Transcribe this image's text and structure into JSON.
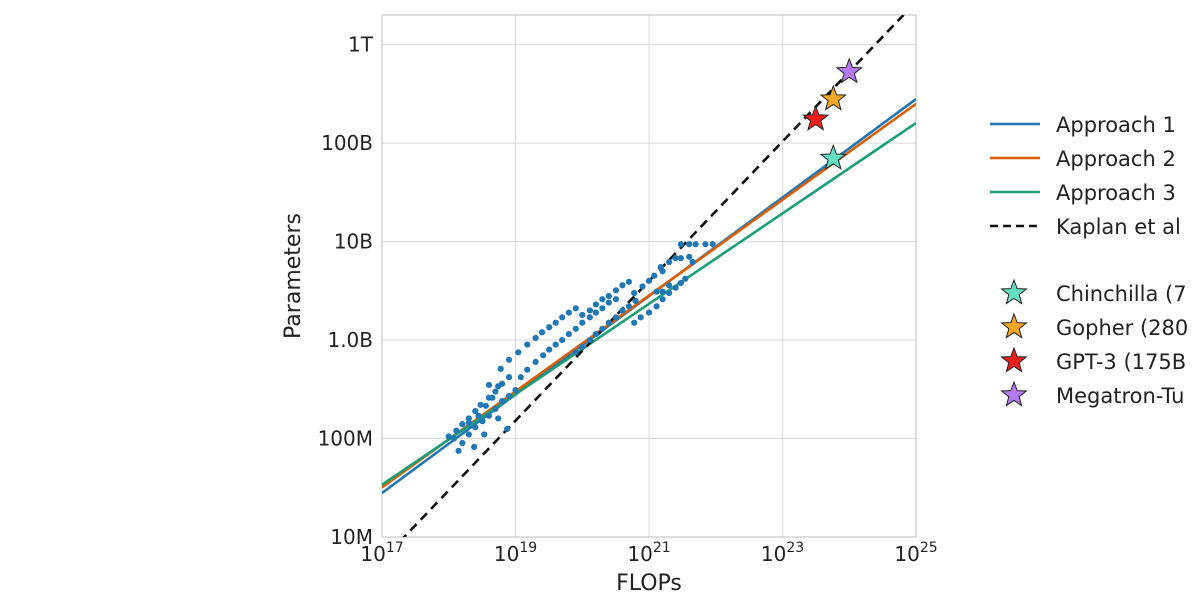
{
  "chart_data": {
    "type": "scatter",
    "xlabel": "FLOPs",
    "ylabel": "Parameters",
    "x_scale": "log",
    "y_scale": "log",
    "xlim": [
      1e+17,
      1e+25
    ],
    "ylim": [
      10000000.0,
      2000000000000.0
    ],
    "grid": true,
    "legend_position": "right (outside, clipped)",
    "x_ticks": [
      {
        "value": 1e+17,
        "base": "10",
        "exp": "17"
      },
      {
        "value": 1e+19,
        "base": "10",
        "exp": "19"
      },
      {
        "value": 1e+21,
        "base": "10",
        "exp": "21"
      },
      {
        "value": 1e+23,
        "base": "10",
        "exp": "23"
      },
      {
        "value": 1e+25,
        "base": "10",
        "exp": "25"
      }
    ],
    "y_ticks": [
      {
        "value": 10000000.0,
        "label": "10M"
      },
      {
        "value": 100000000.0,
        "label": "100M"
      },
      {
        "value": 1000000000.0,
        "label": "1.0B"
      },
      {
        "value": 10000000000.0,
        "label": "10B"
      },
      {
        "value": 100000000000.0,
        "label": "100B"
      },
      {
        "value": 1000000000000.0,
        "label": "1T"
      }
    ],
    "lines": [
      {
        "name": "Approach 1",
        "color": "#1f77b4",
        "dash": false,
        "points": [
          [
            1e+17,
            28000000.0
          ],
          [
            1e+25,
            280000000000.0
          ]
        ]
      },
      {
        "name": "Approach 2",
        "color": "#d95f02",
        "dash": false,
        "points": [
          [
            1e+17,
            32000000.0
          ],
          [
            1e+25,
            250000000000.0
          ]
        ]
      },
      {
        "name": "Approach 3",
        "color": "#1b9e77",
        "dash": false,
        "points": [
          [
            1e+17,
            34000000.0
          ],
          [
            1e+25,
            160000000000.0
          ]
        ]
      },
      {
        "name": "Kaplan et al",
        "color": "#111111",
        "dash": true,
        "points": [
          [
            1.3e+17,
            7000000.0
          ],
          [
            6.5e+24,
            2000000000000.0
          ]
        ]
      }
    ],
    "scatter_color": "#1f77b4",
    "scatter_points": [
      [
        1e+18,
        105000000.0
      ],
      [
        1.3e+18,
        120000000.0
      ],
      [
        1.6e+18,
        140000000.0
      ],
      [
        2e+18,
        160000000.0
      ],
      [
        2.5e+18,
        190000000.0
      ],
      [
        3e+18,
        220000000.0
      ],
      [
        4e+18,
        260000000.0
      ],
      [
        5e+18,
        300000000.0
      ],
      [
        6.3e+18,
        360000000.0
      ],
      [
        8e+18,
        420000000.0
      ],
      [
        1.2e+18,
        100000000.0
      ],
      [
        1.6e+18,
        90000000.0
      ],
      [
        2e+18,
        110000000.0
      ],
      [
        2.5e+18,
        130000000.0
      ],
      [
        3.2e+18,
        150000000.0
      ],
      [
        4e+18,
        170000000.0
      ],
      [
        5e+18,
        200000000.0
      ],
      [
        6.3e+18,
        240000000.0
      ],
      [
        8e+18,
        270000000.0
      ],
      [
        1e+19,
        310000000.0
      ],
      [
        1.4e+18,
        75000000.0
      ],
      [
        2.4e+18,
        82000000.0
      ],
      [
        3.4e+18,
        110000000.0
      ],
      [
        5.5e+18,
        160000000.0
      ],
      [
        7.5e+18,
        125000000.0
      ],
      [
        2e+18,
        145000000.0
      ],
      [
        2.8e+18,
        170000000.0
      ],
      [
        3.6e+18,
        215000000.0
      ],
      [
        4.5e+18,
        260000000.0
      ],
      [
        5.5e+18,
        340000000.0
      ],
      [
        4e+18,
        350000000.0
      ],
      [
        6e+18,
        510000000.0
      ],
      [
        8e+18,
        630000000.0
      ],
      [
        1.1e+19,
        750000000.0
      ],
      [
        1.2e+19,
        420000000.0
      ],
      [
        1.5e+19,
        500000000.0
      ],
      [
        2e+19,
        600000000.0
      ],
      [
        2.6e+19,
        700000000.0
      ],
      [
        3.2e+19,
        800000000.0
      ],
      [
        4e+19,
        900000000.0
      ],
      [
        5e+19,
        1000000000.0
      ],
      [
        6.3e+19,
        1150000000.0
      ],
      [
        8e+19,
        1300000000.0
      ],
      [
        1e+20,
        1500000000.0
      ],
      [
        1.3e+20,
        1700000000.0
      ],
      [
        1.6e+20,
        1900000000.0
      ],
      [
        2e+20,
        2100000000.0
      ],
      [
        2.5e+20,
        2400000000.0
      ],
      [
        3.2e+20,
        2600000000.0
      ],
      [
        1.5e+19,
        900000000.0
      ],
      [
        2e+19,
        1050000000.0
      ],
      [
        2.5e+19,
        1200000000.0
      ],
      [
        3.2e+19,
        1350000000.0
      ],
      [
        4e+19,
        1500000000.0
      ],
      [
        5e+19,
        1700000000.0
      ],
      [
        6.3e+19,
        1900000000.0
      ],
      [
        8e+19,
        2100000000.0
      ],
      [
        8e+19,
        750000000.0
      ],
      [
        1e+20,
        850000000.0
      ],
      [
        1.3e+20,
        1000000000.0
      ],
      [
        1.6e+20,
        1150000000.0
      ],
      [
        2e+20,
        1300000000.0
      ],
      [
        2.5e+20,
        1500000000.0
      ],
      [
        3.2e+20,
        1700000000.0
      ],
      [
        4e+20,
        2000000000.0
      ],
      [
        5e+20,
        2200000000.0
      ],
      [
        6.3e+20,
        2500000000.0
      ],
      [
        1e+20,
        1800000000.0
      ],
      [
        1.3e+20,
        2000000000.0
      ],
      [
        1.6e+20,
        2300000000.0
      ],
      [
        2e+20,
        2600000000.0
      ],
      [
        2.5e+20,
        2800000000.0
      ],
      [
        3.2e+20,
        3200000000.0
      ],
      [
        4e+20,
        3600000000.0
      ],
      [
        5e+20,
        3900000000.0
      ],
      [
        6e+20,
        3000000000.0
      ],
      [
        8e+20,
        3500000000.0
      ],
      [
        1e+21,
        4000000000.0
      ],
      [
        1.2e+21,
        4500000000.0
      ],
      [
        1.6e+21,
        5000000000.0
      ],
      [
        6e+20,
        1500000000.0
      ],
      [
        7.5e+20,
        1700000000.0
      ],
      [
        1e+21,
        1900000000.0
      ],
      [
        1.3e+21,
        2200000000.0
      ],
      [
        1.6e+21,
        2600000000.0
      ],
      [
        2e+21,
        3000000000.0
      ],
      [
        2.5e+21,
        3400000000.0
      ],
      [
        3e+21,
        3800000000.0
      ],
      [
        3.5e+21,
        4200000000.0
      ],
      [
        1.3e+21,
        3100000000.0
      ],
      [
        1.6e+21,
        3100000000.0
      ],
      [
        2e+21,
        3600000000.0
      ],
      [
        1.5e+21,
        5500000000.0
      ],
      [
        2e+21,
        6200000000.0
      ],
      [
        2.5e+21,
        6800000000.0
      ],
      [
        3e+21,
        6800000000.0
      ],
      [
        4e+21,
        7000000000.0
      ],
      [
        4.5e+21,
        6200000000.0
      ],
      [
        3e+21,
        9400000000.0
      ],
      [
        4e+21,
        9400000000.0
      ],
      [
        5e+21,
        9400000000.0
      ],
      [
        7e+21,
        9400000000.0
      ],
      [
        9e+21,
        9400000000.0
      ]
    ],
    "models": [
      {
        "name": "Chinchilla (7",
        "x": 5.76e+23,
        "y": 70000000000.0,
        "color": "#66e0c2"
      },
      {
        "name": "Gopher (280",
        "x": 5.76e+23,
        "y": 280000000000.0,
        "color": "#f5a623"
      },
      {
        "name": "GPT-3 (175B",
        "x": 3.14e+23,
        "y": 175000000000.0,
        "color": "#ee1c1c"
      },
      {
        "name": "Megatron-Tu",
        "x": 1e+24,
        "y": 530000000000.0,
        "color": "#b57bf0"
      }
    ]
  }
}
